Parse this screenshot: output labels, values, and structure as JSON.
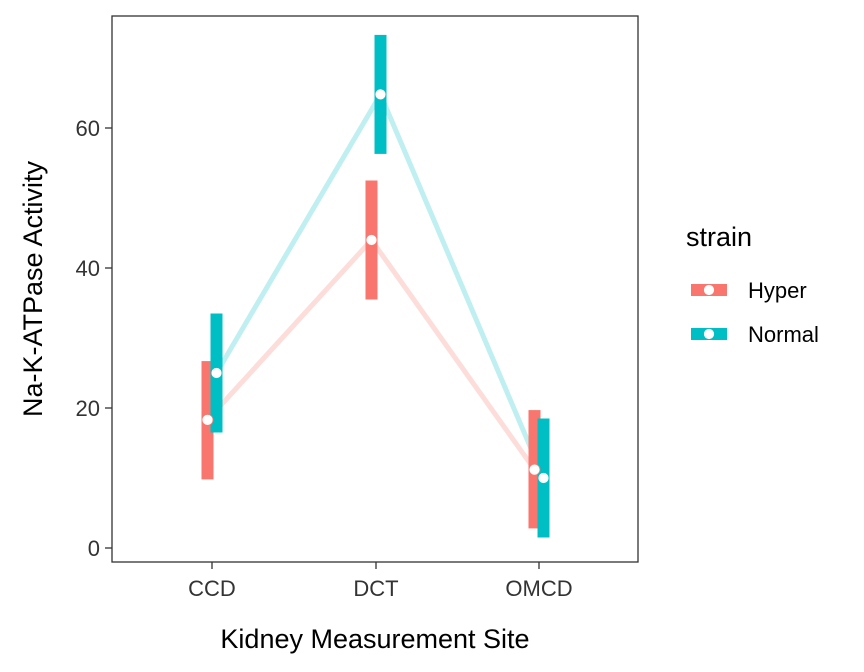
{
  "chart_data": {
    "type": "line",
    "xlabel": "Kidney Measurement Site",
    "ylabel": "Na-K-ATPase Activity",
    "categories": [
      "CCD",
      "DCT",
      "OMCD"
    ],
    "ylim": [
      -2,
      76
    ],
    "yticks": [
      0,
      20,
      40,
      60
    ],
    "grid": false,
    "legend": {
      "title": "strain",
      "position": "right"
    },
    "series": [
      {
        "name": "Hyper",
        "color": "#F8766D",
        "mean": [
          18.3,
          44.0,
          11.2
        ],
        "lower": [
          9.8,
          35.5,
          2.8
        ],
        "upper": [
          26.7,
          52.5,
          19.7
        ]
      },
      {
        "name": "Normal",
        "color": "#00BFC4",
        "mean": [
          25.0,
          64.8,
          10.0
        ],
        "lower": [
          16.5,
          56.3,
          1.5
        ],
        "upper": [
          33.5,
          73.3,
          18.5
        ]
      }
    ]
  }
}
